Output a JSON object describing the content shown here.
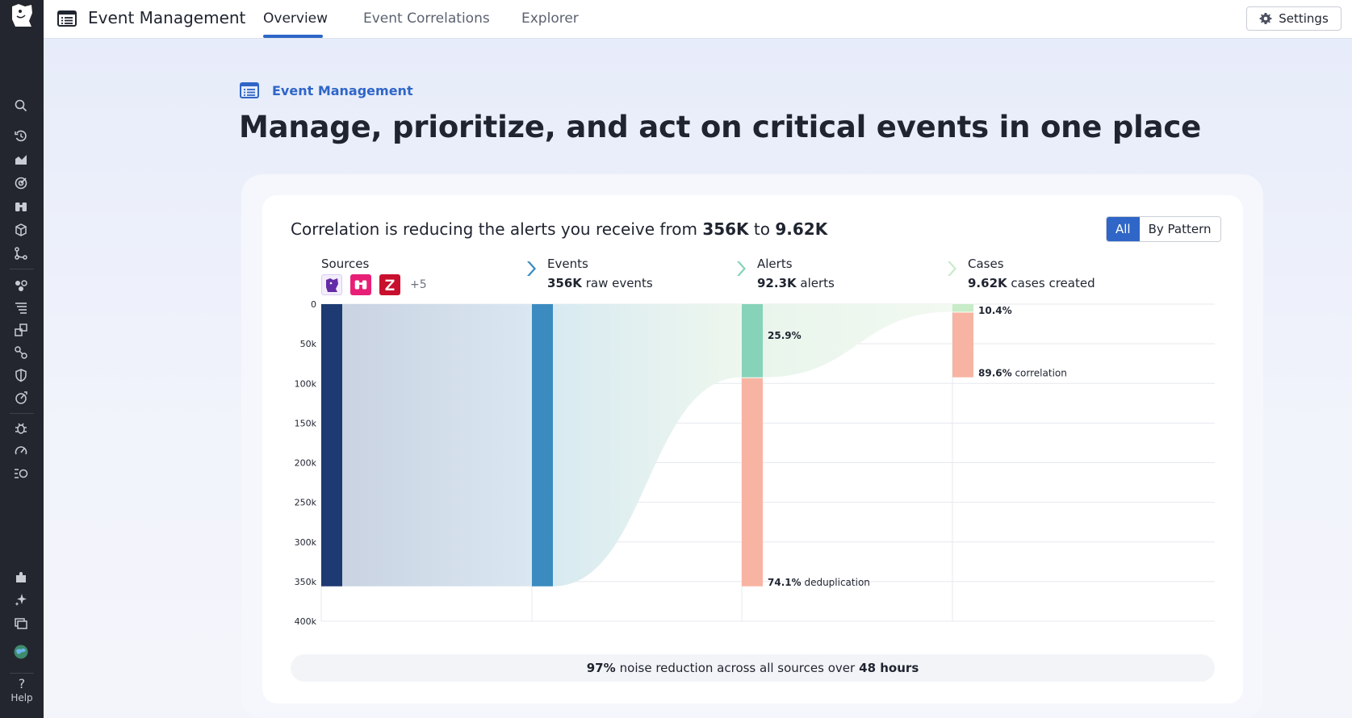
{
  "app": {
    "title": "Event Management",
    "tabs": [
      {
        "label": "Overview",
        "active": true
      },
      {
        "label": "Event Correlations",
        "active": false
      },
      {
        "label": "Explorer",
        "active": false
      }
    ],
    "settings_label": "Settings"
  },
  "sidebar": {
    "icons": [
      "search-icon",
      "history-icon",
      "dashboards-icon",
      "monitors-icon",
      "binoculars-icon",
      "infrastructure-icon",
      "apm-icon",
      "services-icon",
      "logs-icon",
      "integrations-icon",
      "network-icon",
      "security-icon",
      "rum-icon",
      "bug-icon",
      "synthetics-icon",
      "ci-icon",
      "extensions-icon",
      "sparkle-icon",
      "incidents-icon",
      "org-avatar"
    ],
    "help_label": "Help"
  },
  "hero": {
    "eyebrow": "Event Management",
    "headline": "Manage, prioritize, and act on critical events in one place"
  },
  "summary": {
    "prefix": "Correlation is reducing the alerts you receive from ",
    "from": "356K",
    "middle": " to ",
    "to": "9.62K"
  },
  "view_toggle": {
    "options": [
      "All",
      "By Pattern"
    ],
    "selected": "All"
  },
  "columns": {
    "sources": {
      "label": "Sources",
      "more": "+5"
    },
    "events": {
      "label": "Events",
      "value": "356K",
      "suffix": " raw events"
    },
    "alerts": {
      "label": "Alerts",
      "value": "92.3K",
      "suffix": " alerts"
    },
    "cases": {
      "label": "Cases",
      "value": "9.62K",
      "suffix": " cases created"
    }
  },
  "colors": {
    "accent": "#2f66c7",
    "sources_bar": "#1e3a73",
    "events_bar": "#3b8bc0",
    "alerts_kept": "#86d3b9",
    "dedup": "#f8b4a3",
    "cases_kept": "#c8ebc8"
  },
  "chart_data": {
    "type": "sankey",
    "ylim": [
      0,
      400000
    ],
    "y_ticks": [
      "0",
      "50k",
      "100k",
      "150k",
      "200k",
      "250k",
      "300k",
      "350k",
      "400k"
    ],
    "stages": [
      {
        "name": "Sources",
        "value": 356000
      },
      {
        "name": "Events",
        "value": 356000
      },
      {
        "name": "Alerts",
        "value": 92300,
        "dropped": 263700,
        "kept_pct": "25.9%",
        "dropped_pct": "74.1%",
        "dropped_label": "deduplication"
      },
      {
        "name": "Cases",
        "value": 9620,
        "dropped": 82680,
        "kept_pct": "10.4%",
        "dropped_pct": "89.6%",
        "dropped_label": "correlation"
      }
    ]
  },
  "footer": {
    "pct": "97%",
    "text": "noise reduction across all sources over",
    "window": "48 hours"
  }
}
